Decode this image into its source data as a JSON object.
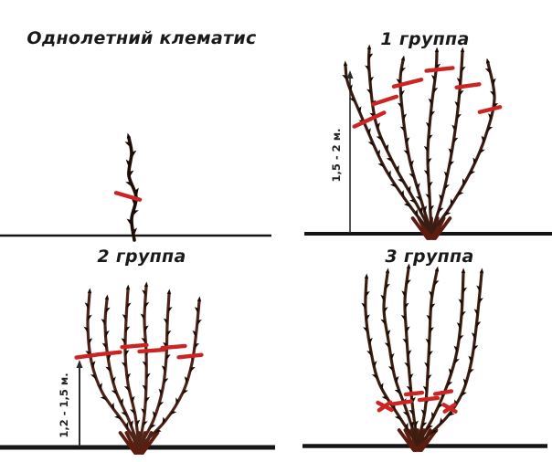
{
  "figure": {
    "background": "#ffffff",
    "colors": {
      "title_text": "#1a1a1a",
      "prune_mark": "#cb2423",
      "ground_line": "#151515",
      "arrow": "#2b2b2b",
      "bud": "#1a0b05",
      "crown": "#5c1d10",
      "annual_stem": "#1d0e08",
      "group1_stem": "#3a1c12",
      "group2_stem": "#4f2418",
      "group3_stem": "#3d1d0d"
    },
    "panels": [
      {
        "id": "annual",
        "title": "Однолетний клематис",
        "measurement": null
      },
      {
        "id": "group1",
        "title": "1 группа",
        "measurement": "1,5 - 2 м."
      },
      {
        "id": "group2",
        "title": "2 группа",
        "measurement": "1,2 - 1,5 м."
      },
      {
        "id": "group3",
        "title": "3 группа",
        "measurement": null
      }
    ]
  }
}
